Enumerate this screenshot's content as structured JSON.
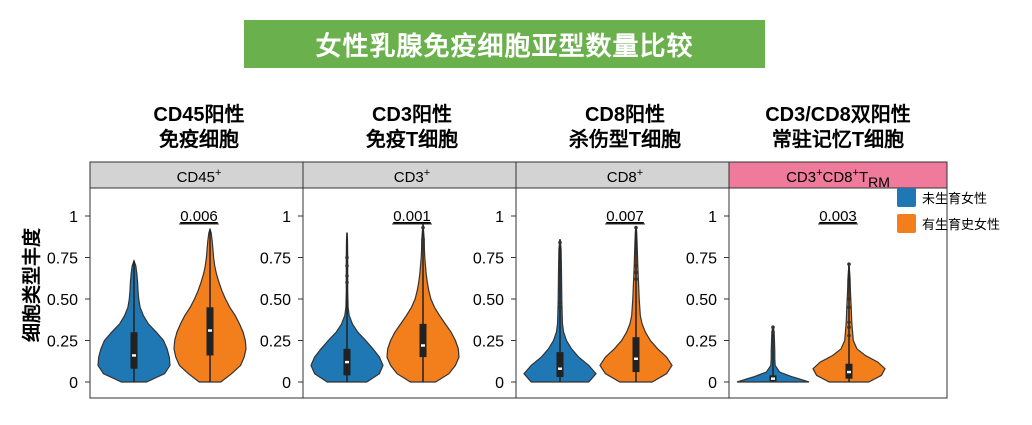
{
  "banner_title": "女性乳腺免疫细胞亚型数量比较",
  "ylabel": "细胞类型丰度",
  "legend": [
    {
      "label": "未生育女性",
      "color": "#1f77b4"
    },
    {
      "label": "有生育史女性",
      "color": "#f27f1b"
    }
  ],
  "colors": {
    "nulliparous": "#1f77b4",
    "parous": "#f27f1b",
    "strip_gray": "#d3d3d3",
    "strip_pink": "#ef7a9b",
    "banner_green": "#6ab04c"
  },
  "chart_data": [
    {
      "type": "violin",
      "title_lines": [
        "CD45阳性",
        "免疫细胞"
      ],
      "strip": "CD45+",
      "strip_style": "gray",
      "p_value": "0.006",
      "ylim": [
        0,
        1
      ],
      "yticks": [
        "0",
        "0.25",
        "0.50",
        "0.75",
        "1"
      ],
      "series": [
        {
          "name": "未生育女性",
          "min": 0.0,
          "max": 0.73,
          "q1": 0.08,
          "median": 0.16,
          "q3": 0.3,
          "profile": [
            [
              0.0,
              0.35
            ],
            [
              0.05,
              0.85
            ],
            [
              0.1,
              1.0
            ],
            [
              0.15,
              0.98
            ],
            [
              0.2,
              0.92
            ],
            [
              0.25,
              0.82
            ],
            [
              0.3,
              0.62
            ],
            [
              0.35,
              0.4
            ],
            [
              0.4,
              0.26
            ],
            [
              0.45,
              0.17
            ],
            [
              0.5,
              0.13
            ],
            [
              0.55,
              0.11
            ],
            [
              0.6,
              0.1
            ],
            [
              0.65,
              0.08
            ],
            [
              0.7,
              0.05
            ],
            [
              0.73,
              0.0
            ]
          ]
        },
        {
          "name": "有生育史女性",
          "min": 0.0,
          "max": 0.92,
          "q1": 0.16,
          "median": 0.31,
          "q3": 0.45,
          "profile": [
            [
              0.0,
              0.3
            ],
            [
              0.05,
              0.6
            ],
            [
              0.1,
              0.85
            ],
            [
              0.15,
              0.95
            ],
            [
              0.2,
              1.0
            ],
            [
              0.25,
              0.98
            ],
            [
              0.3,
              0.92
            ],
            [
              0.35,
              0.82
            ],
            [
              0.4,
              0.7
            ],
            [
              0.45,
              0.55
            ],
            [
              0.5,
              0.43
            ],
            [
              0.55,
              0.33
            ],
            [
              0.6,
              0.25
            ],
            [
              0.65,
              0.18
            ],
            [
              0.7,
              0.13
            ],
            [
              0.75,
              0.1
            ],
            [
              0.8,
              0.08
            ],
            [
              0.85,
              0.06
            ],
            [
              0.9,
              0.03
            ],
            [
              0.92,
              0.0
            ]
          ]
        }
      ]
    },
    {
      "type": "violin",
      "title_lines": [
        "CD3阳性",
        "免疫T细胞"
      ],
      "strip": "CD3+",
      "strip_style": "gray",
      "p_value": "0.001",
      "ylim": [
        0,
        1
      ],
      "yticks": [
        "0",
        "0.25",
        "0.50",
        "0.75",
        "1"
      ],
      "series": [
        {
          "name": "未生育女性",
          "min": 0.0,
          "max": 0.9,
          "q1": 0.04,
          "median": 0.12,
          "q3": 0.2,
          "outliers": [
            0.6,
            0.64,
            0.7,
            0.75
          ],
          "profile": [
            [
              0.0,
              0.55
            ],
            [
              0.05,
              0.9
            ],
            [
              0.1,
              1.0
            ],
            [
              0.15,
              0.9
            ],
            [
              0.2,
              0.72
            ],
            [
              0.25,
              0.52
            ],
            [
              0.3,
              0.3
            ],
            [
              0.35,
              0.15
            ],
            [
              0.4,
              0.06
            ],
            [
              0.45,
              0.03
            ],
            [
              0.55,
              0.02
            ],
            [
              0.65,
              0.02
            ],
            [
              0.75,
              0.02
            ],
            [
              0.85,
              0.015
            ],
            [
              0.9,
              0.0
            ]
          ]
        },
        {
          "name": "有生育史女性",
          "min": 0.0,
          "max": 0.95,
          "q1": 0.15,
          "median": 0.22,
          "q3": 0.35,
          "outliers": [
            0.8,
            0.86,
            0.93
          ],
          "profile": [
            [
              0.0,
              0.35
            ],
            [
              0.05,
              0.72
            ],
            [
              0.1,
              0.9
            ],
            [
              0.15,
              1.0
            ],
            [
              0.2,
              0.98
            ],
            [
              0.25,
              0.9
            ],
            [
              0.3,
              0.78
            ],
            [
              0.35,
              0.62
            ],
            [
              0.4,
              0.46
            ],
            [
              0.45,
              0.32
            ],
            [
              0.5,
              0.22
            ],
            [
              0.55,
              0.16
            ],
            [
              0.6,
              0.12
            ],
            [
              0.65,
              0.09
            ],
            [
              0.7,
              0.07
            ],
            [
              0.75,
              0.05
            ],
            [
              0.8,
              0.04
            ],
            [
              0.85,
              0.035
            ],
            [
              0.9,
              0.02
            ],
            [
              0.95,
              0.0
            ]
          ]
        }
      ]
    },
    {
      "type": "violin",
      "title_lines": [
        "CD8阳性",
        "杀伤型T细胞"
      ],
      "strip": "CD8+",
      "strip_style": "gray",
      "p_value": "0.007",
      "ylim": [
        0,
        1
      ],
      "yticks": [
        "0",
        "0.25",
        "0.50",
        "0.75",
        "1"
      ],
      "series": [
        {
          "name": "未生育女性",
          "min": 0.0,
          "max": 0.86,
          "q1": 0.03,
          "median": 0.08,
          "q3": 0.18,
          "outliers": [
            0.45,
            0.48,
            0.55,
            0.62,
            0.7,
            0.84
          ],
          "profile": [
            [
              0.0,
              0.8
            ],
            [
              0.05,
              1.0
            ],
            [
              0.1,
              0.8
            ],
            [
              0.15,
              0.52
            ],
            [
              0.2,
              0.32
            ],
            [
              0.25,
              0.18
            ],
            [
              0.3,
              0.1
            ],
            [
              0.35,
              0.07
            ],
            [
              0.4,
              0.06
            ],
            [
              0.5,
              0.05
            ],
            [
              0.6,
              0.045
            ],
            [
              0.7,
              0.04
            ],
            [
              0.8,
              0.03
            ],
            [
              0.86,
              0.0
            ]
          ]
        },
        {
          "name": "有生育史女性",
          "min": 0.0,
          "max": 0.94,
          "q1": 0.06,
          "median": 0.14,
          "q3": 0.27,
          "outliers": [
            0.62,
            0.66,
            0.7,
            0.78,
            0.93
          ],
          "profile": [
            [
              0.0,
              0.45
            ],
            [
              0.05,
              0.85
            ],
            [
              0.1,
              1.0
            ],
            [
              0.15,
              0.85
            ],
            [
              0.2,
              0.6
            ],
            [
              0.25,
              0.4
            ],
            [
              0.3,
              0.26
            ],
            [
              0.35,
              0.17
            ],
            [
              0.4,
              0.12
            ],
            [
              0.5,
              0.09
            ],
            [
              0.6,
              0.07
            ],
            [
              0.7,
              0.05
            ],
            [
              0.8,
              0.035
            ],
            [
              0.9,
              0.02
            ],
            [
              0.94,
              0.0
            ]
          ]
        }
      ]
    },
    {
      "type": "violin",
      "title_lines": [
        "CD3/CD8双阳性",
        "常驻记忆T细胞"
      ],
      "strip": "CD3+CD8+TRM",
      "strip_style": "pink",
      "p_value": "0.003",
      "ylim": [
        0,
        1
      ],
      "yticks": [
        "0",
        "0.25",
        "0.50",
        "0.75",
        "1"
      ],
      "series": [
        {
          "name": "未生育女性",
          "min": 0.0,
          "max": 0.34,
          "q1": 0.005,
          "median": 0.02,
          "q3": 0.04,
          "outliers": [
            0.22,
            0.26,
            0.3,
            0.33
          ],
          "profile": [
            [
              0.0,
              1.0
            ],
            [
              0.03,
              0.55
            ],
            [
              0.06,
              0.18
            ],
            [
              0.1,
              0.06
            ],
            [
              0.14,
              0.05
            ],
            [
              0.18,
              0.05
            ],
            [
              0.22,
              0.045
            ],
            [
              0.26,
              0.04
            ],
            [
              0.3,
              0.03
            ],
            [
              0.34,
              0.0
            ]
          ]
        },
        {
          "name": "有生育史女性",
          "min": 0.0,
          "max": 0.72,
          "q1": 0.02,
          "median": 0.06,
          "q3": 0.11,
          "outliers": [
            0.28,
            0.33,
            0.36,
            0.45,
            0.5,
            0.71
          ],
          "profile": [
            [
              0.0,
              0.55
            ],
            [
              0.04,
              0.9
            ],
            [
              0.08,
              1.0
            ],
            [
              0.12,
              0.8
            ],
            [
              0.16,
              0.45
            ],
            [
              0.2,
              0.22
            ],
            [
              0.25,
              0.12
            ],
            [
              0.3,
              0.1
            ],
            [
              0.35,
              0.08
            ],
            [
              0.4,
              0.07
            ],
            [
              0.45,
              0.06
            ],
            [
              0.5,
              0.05
            ],
            [
              0.55,
              0.04
            ],
            [
              0.62,
              0.03
            ],
            [
              0.72,
              0.0
            ]
          ]
        }
      ]
    }
  ]
}
